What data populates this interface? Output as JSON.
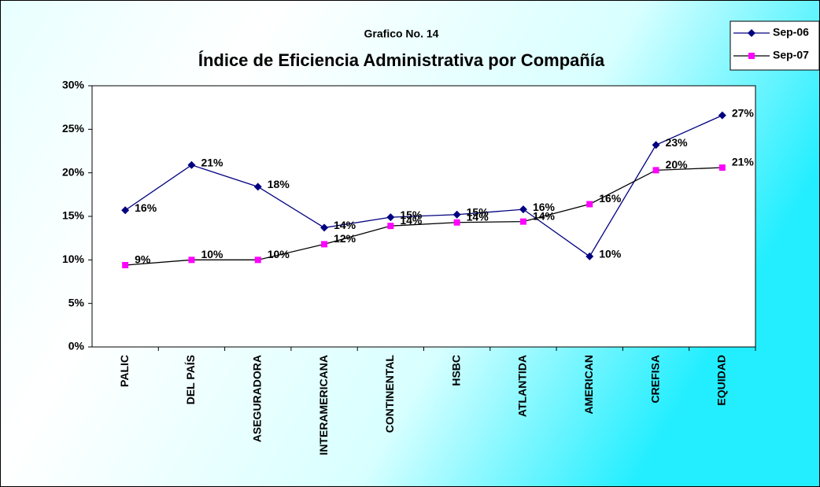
{
  "chart_data": {
    "type": "line",
    "subtitle": "Grafico No. 14",
    "title": "Índice de Eficiencia Administrativa por Compañía",
    "categories": [
      "PALIC",
      "DEL PAÍS",
      "ASEGURADORA",
      "INTERAMERICANA",
      "CONTINENTAL",
      "HSBC",
      "ATLANTIDA",
      "AMERICAN",
      "CREFISA",
      "EQUIDAD"
    ],
    "series": [
      {
        "name": "Sep-06",
        "color": "#000080",
        "marker": "diamond",
        "values": [
          15.7,
          20.9,
          18.4,
          13.7,
          14.9,
          15.2,
          15.8,
          10.4,
          23.2,
          26.6
        ],
        "value_labels": [
          "16%",
          "21%",
          "18%",
          "14%",
          "15%",
          "15%",
          "16%",
          "10%",
          "23%",
          "27%"
        ]
      },
      {
        "name": "Sep-07",
        "color": "#ff00ff",
        "line_color": "#000000",
        "marker": "square",
        "values": [
          9.4,
          10.0,
          10.0,
          11.8,
          13.9,
          14.3,
          14.4,
          16.4,
          20.3,
          20.6
        ],
        "value_labels": [
          "9%",
          "10%",
          "10%",
          "12%",
          "14%",
          "14%",
          "14%",
          "16%",
          "20%",
          "21%"
        ]
      }
    ],
    "ylim": [
      0,
      30
    ],
    "yticks": [
      {
        "value": 0,
        "label": "0%"
      },
      {
        "value": 5,
        "label": "5%"
      },
      {
        "value": 10,
        "label": "10%"
      },
      {
        "value": 15,
        "label": "15%"
      },
      {
        "value": 20,
        "label": "20%"
      },
      {
        "value": 25,
        "label": "25%"
      },
      {
        "value": 30,
        "label": "30%"
      }
    ],
    "legend": "top-right",
    "grid": false
  }
}
